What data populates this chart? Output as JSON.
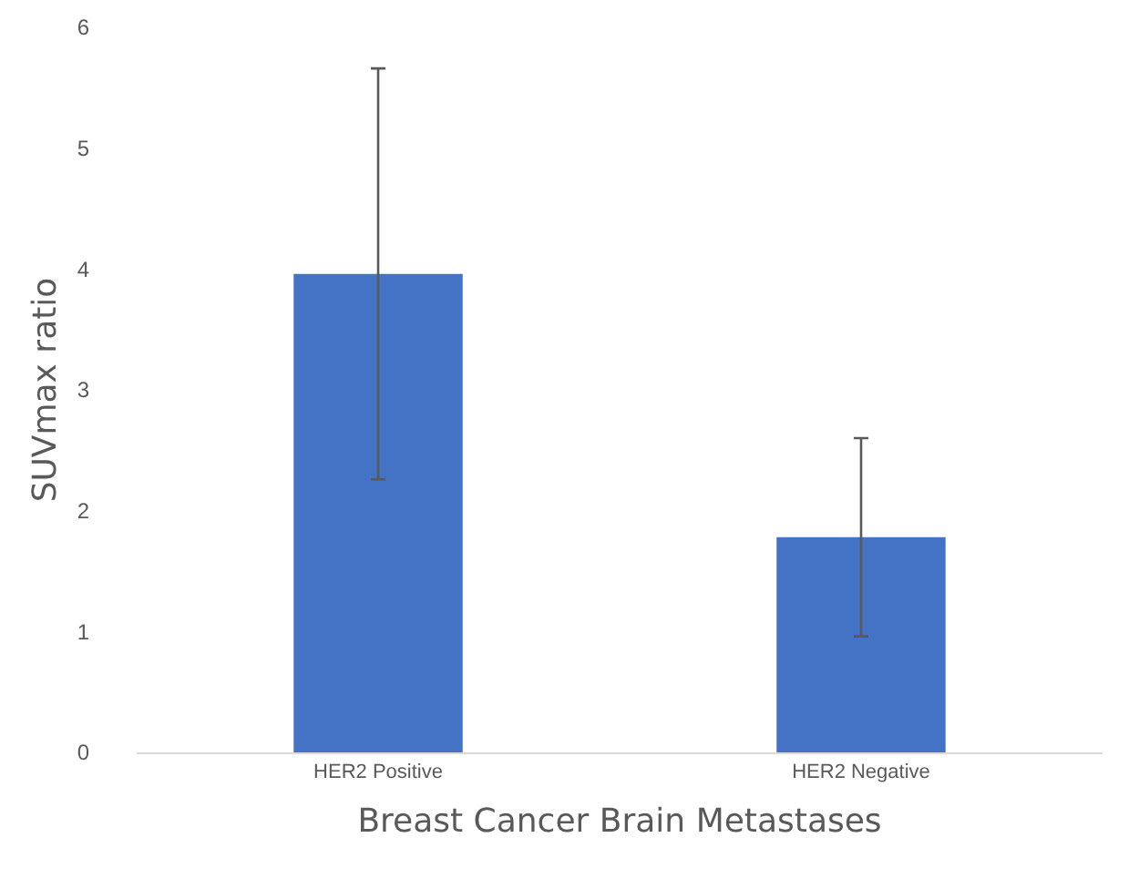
{
  "chart_data": {
    "type": "bar",
    "xlabel": "Breast Cancer Brain Metastases",
    "ylabel": "SUVmax ratio",
    "categories": [
      "HER2 Positive",
      "HER2 Negative"
    ],
    "values": [
      3.96,
      1.78
    ],
    "errors": [
      1.7,
      0.82
    ],
    "color": "#4472c4",
    "ylim": [
      0,
      6
    ],
    "yticks": [
      0,
      1,
      2,
      3,
      4,
      5,
      6
    ],
    "grid": false
  }
}
